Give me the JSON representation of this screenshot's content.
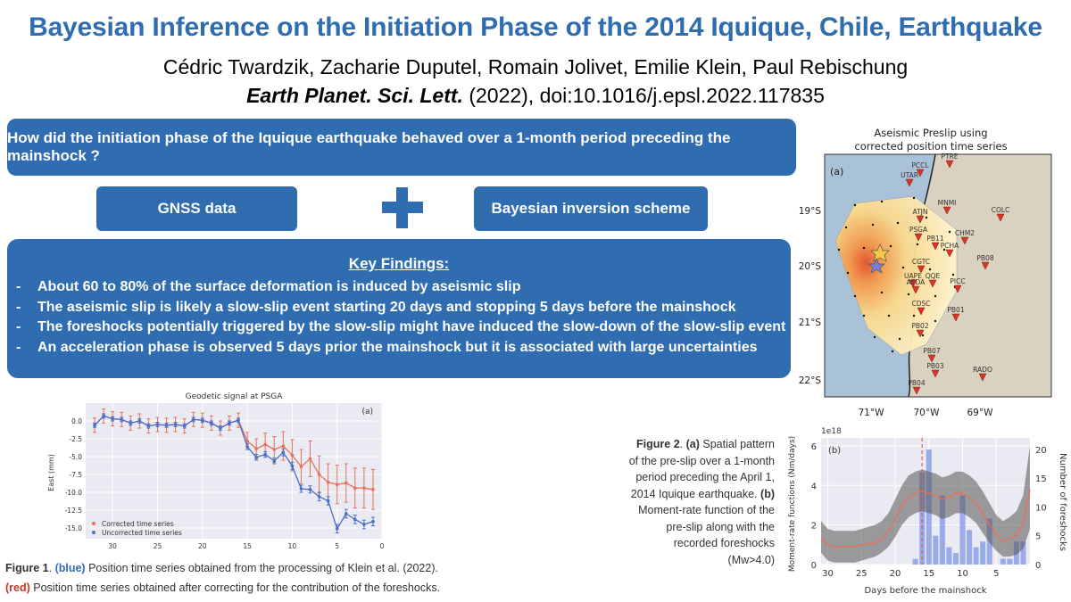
{
  "header": {
    "title": "Bayesian Inference on the Initiation Phase of the 2014 Iquique, Chile, Earthquake",
    "authors": "Cédric Twardzik, Zacharie Duputel, Romain Jolivet, Emilie Klein, Paul Rebischung",
    "journal_name": "Earth Planet. Sci. Lett.",
    "journal_ref": " (2022), doi:10.1016/j.epsl.2022.117835"
  },
  "question": "How did the initiation phase of the Iquique earthquake behaved over a 1-month period preceding the mainshock ?",
  "inputs": {
    "left": "GNSS data",
    "right": "Bayesian inversion scheme"
  },
  "findings": {
    "heading": "Key Findings:",
    "items": [
      "About 60 to 80% of the surface deformation is induced by aseismic slip",
      "The aseismic slip is likely a slow-slip event starting 20 days and stopping 5 days before the mainshock",
      "The foreshocks potentially triggered by the slow-slip might have induced the slow-down of the slow-slip event",
      "An acceleration phase is observed 5 days prior the mainshock but it is associated with large uncertainties"
    ]
  },
  "figure1_caption": {
    "fig": "Figure 1",
    "blue_tag": "(blue)",
    "blue_text": " Position time series obtained from the processing of Klein et al. (2022).",
    "red_tag": "(red)",
    "red_text": " Position time series obtained after correcting for the contribution of the foreshocks."
  },
  "figure2_caption": {
    "fig": "Figure 2",
    "a_tag": "(a)",
    "a_text": " Spatial pattern of the pre-slip over a 1-month period preceding the April 1, 2014 Iquique earthquake.",
    "b_tag": "(b)",
    "b_text": " Moment-rate function of the pre-slip along with the recorded foreshocks (Mw>4.0)"
  },
  "map": {
    "title_line1": "Aseismic Preslip using",
    "title_line2": "corrected position time series",
    "panel": "(a)",
    "lat_labels": [
      "19°S",
      "20°S",
      "21°S",
      "22°S"
    ],
    "lon_labels": [
      "71°W",
      "70°W",
      "69°W"
    ],
    "stations": [
      "PTRE",
      "PCCL",
      "UTAR",
      "MNMI",
      "COLC",
      "ATJN",
      "PSGA",
      "CHM2",
      "PB11",
      "PCHA",
      "PB08",
      "CGTC",
      "UAPE",
      "QQE",
      "AEDA",
      "PICC",
      "CDSC",
      "PB01",
      "PB02",
      "PB07",
      "PB03",
      "RADO",
      "PB04"
    ]
  },
  "chart_data": [
    {
      "type": "line",
      "title": "Geodetic signal at PSGA",
      "panel": "(a)",
      "xlabel": "",
      "ylabel": "East (mm)",
      "xlim": [
        33,
        0
      ],
      "ylim": [
        -16.5,
        2.5
      ],
      "x_ticks": [
        30,
        25,
        20,
        15,
        10,
        5,
        0
      ],
      "y_ticks": [
        0.0,
        -2.5,
        -5.0,
        -7.5,
        -10.0,
        -12.5,
        -15.0
      ],
      "x_tick_labels": [
        "30",
        "25",
        "20",
        "15",
        "10",
        "5",
        "0"
      ],
      "y_tick_labels": [
        "0.0",
        "-2.5",
        "-5.0",
        "-7.5",
        "-10.0",
        "-12.5",
        "-15.0"
      ],
      "legend": [
        "Corrected time series",
        "Uncorrected time series"
      ],
      "x": [
        32,
        31,
        30,
        29,
        28,
        27,
        26,
        25,
        24,
        23,
        22,
        21,
        20,
        19,
        18,
        17,
        16,
        15,
        14,
        13,
        12,
        11,
        10,
        9,
        8,
        7,
        6,
        5,
        4,
        3,
        2,
        1
      ],
      "series": [
        {
          "name": "Corrected time series",
          "color": "#e8705a",
          "values": [
            -0.6,
            0.7,
            0.3,
            0.2,
            -0.3,
            0.0,
            -0.7,
            -0.5,
            -0.6,
            -0.5,
            -0.7,
            0.2,
            0.1,
            -0.3,
            -1.0,
            -0.3,
            0.1,
            -2.8,
            -3.9,
            -3.3,
            -4.0,
            -3.5,
            -4.8,
            -6.4,
            -5.3,
            -7.5,
            -8.6,
            -8.9,
            -8.7,
            -9.4,
            -9.4,
            -9.6
          ],
          "error": [
            1.0,
            1.0,
            1.0,
            1.0,
            1.0,
            1.0,
            1.0,
            1.0,
            1.0,
            1.0,
            1.0,
            1.0,
            1.0,
            1.0,
            1.0,
            1.0,
            1.0,
            1.2,
            1.4,
            1.6,
            1.8,
            2.0,
            2.2,
            2.4,
            2.5,
            2.6,
            2.6,
            2.7,
            2.7,
            2.8,
            2.8,
            2.8
          ]
        },
        {
          "name": "Uncorrected time series",
          "color": "#4a6fc7",
          "values": [
            -0.6,
            0.7,
            0.3,
            0.2,
            -0.3,
            0.0,
            -0.7,
            -0.5,
            -0.6,
            -0.5,
            -0.7,
            0.2,
            0.1,
            -0.3,
            -1.0,
            -0.3,
            0.1,
            -3.6,
            -5.1,
            -4.7,
            -5.6,
            -4.4,
            -6.3,
            -9.5,
            -9.6,
            -10.6,
            -11.2,
            -15.1,
            -13.0,
            -13.8,
            -14.5,
            -14.1
          ],
          "error": [
            0.3,
            0.3,
            0.3,
            0.3,
            0.3,
            0.3,
            0.3,
            0.3,
            0.3,
            0.3,
            0.3,
            0.3,
            0.3,
            0.3,
            0.3,
            0.3,
            0.3,
            0.4,
            0.4,
            0.4,
            0.4,
            0.5,
            0.5,
            0.5,
            0.5,
            0.6,
            0.6,
            0.6,
            0.6,
            0.6,
            0.6,
            0.6
          ]
        }
      ]
    },
    {
      "type": "line",
      "title": "",
      "panel": "(b)",
      "scale_label": "1e18",
      "xlabel": "Days before the mainshock",
      "ylabel": "Moment-rate functions (Nm/days)",
      "ylabel_right": "Number of foreshocks",
      "xlim": [
        31,
        0
      ],
      "ylim": [
        0,
        6.4
      ],
      "ylim_right": [
        0,
        22
      ],
      "x_ticks": [
        30,
        25,
        20,
        15,
        10,
        5
      ],
      "y_ticks": [
        0,
        2,
        4,
        6
      ],
      "y_ticks_right": [
        0,
        5,
        10,
        15,
        20
      ],
      "x_tick_labels": [
        "30",
        "25",
        "20",
        "15",
        "10",
        "5"
      ],
      "y_tick_labels": [
        "0",
        "2",
        "4",
        "6"
      ],
      "y_tick_labels_right": [
        "0",
        "5",
        "10",
        "15",
        "20"
      ],
      "mainshock_marker_day": 16,
      "x": [
        31,
        30,
        29,
        28,
        27,
        26,
        25,
        24,
        23,
        22,
        21,
        20,
        19,
        18,
        17,
        16,
        15,
        14,
        13,
        12,
        11,
        10,
        9,
        8,
        7,
        6,
        5,
        4,
        3,
        2,
        1,
        0
      ],
      "moment_rate_mean": [
        1.3,
        1.0,
        0.9,
        0.9,
        0.9,
        0.9,
        1.0,
        1.05,
        1.1,
        1.3,
        1.7,
        2.3,
        3.0,
        3.4,
        3.6,
        3.7,
        3.6,
        3.5,
        3.3,
        3.4,
        3.6,
        3.6,
        3.4,
        3.1,
        2.6,
        2.0,
        1.5,
        1.2,
        1.3,
        1.5,
        2.1,
        3.8
      ],
      "moment_rate_lower": [
        0.6,
        0.2,
        0.1,
        0.1,
        0.1,
        0.1,
        0.2,
        0.3,
        0.4,
        0.6,
        0.9,
        1.4,
        2.0,
        2.4,
        2.6,
        2.7,
        2.6,
        2.5,
        2.3,
        2.4,
        2.6,
        2.6,
        2.4,
        2.1,
        1.6,
        1.1,
        0.7,
        0.4,
        0.4,
        0.5,
        0.8,
        1.8
      ],
      "moment_rate_upper": [
        2.2,
        1.8,
        1.7,
        1.7,
        1.7,
        1.7,
        1.8,
        1.9,
        2.0,
        2.2,
        2.6,
        3.3,
        4.0,
        4.5,
        4.7,
        4.8,
        4.7,
        4.6,
        4.4,
        4.5,
        4.7,
        4.7,
        4.5,
        4.2,
        3.7,
        3.1,
        2.5,
        2.2,
        2.4,
        2.7,
        3.5,
        6.0
      ],
      "foreshock_days": [
        17,
        16,
        15,
        14,
        13,
        12,
        11,
        10,
        9,
        8,
        7,
        6,
        5,
        4,
        3,
        2,
        1
      ],
      "foreshock_counts": [
        1,
        16,
        20,
        5,
        12,
        3,
        2,
        12,
        6,
        3,
        4,
        8,
        0,
        1,
        1,
        4,
        4
      ]
    }
  ]
}
